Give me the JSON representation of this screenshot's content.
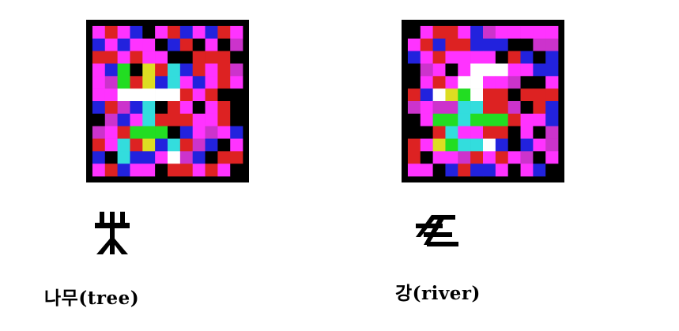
{
  "colors": {
    "background": "#000000",
    "palette": [
      "#ff33ff",
      "#dd2222",
      "#2222dd",
      "#cc33cc",
      "#22dd22",
      "#ffffff",
      "#33dddd",
      "#dddd22",
      "#000000"
    ]
  },
  "figures": [
    {
      "id": "tree",
      "caption": "나무(tree)",
      "symbol_icon": "tree-glyph-icon"
    },
    {
      "id": "river",
      "caption": "강(river)",
      "symbol_icon": "river-glyph-icon"
    }
  ]
}
